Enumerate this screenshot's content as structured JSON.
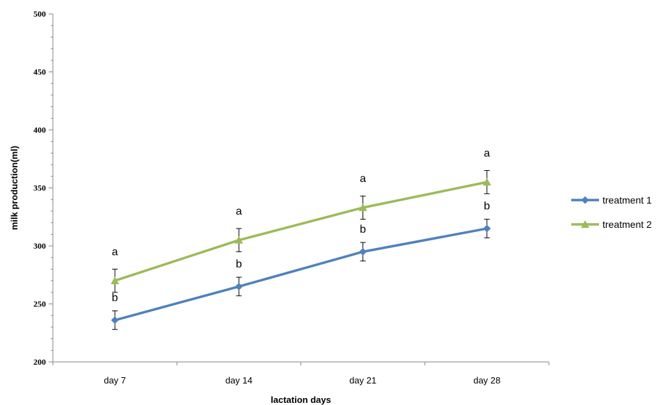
{
  "chart_data": {
    "type": "line",
    "categories": [
      "day 7",
      "day 14",
      "day 21",
      "day 28"
    ],
    "xlabel": "lactation days",
    "ylabel": "milk production(ml)",
    "ylim": [
      200,
      500
    ],
    "yticks": [
      200,
      250,
      300,
      350,
      400,
      450,
      500
    ],
    "grid": false,
    "legend_position": "right",
    "series": [
      {
        "name": "treatment 1",
        "color": "#4F81BD",
        "marker": "diamond",
        "values": [
          236,
          265,
          295,
          315
        ],
        "error": [
          8,
          8,
          8,
          8
        ],
        "annotations": [
          "b",
          "b",
          "b",
          "b"
        ]
      },
      {
        "name": "treatment 2",
        "color": "#9BBB59",
        "marker": "triangle",
        "values": [
          270,
          305,
          333,
          355
        ],
        "error": [
          10,
          10,
          10,
          10
        ],
        "annotations": [
          "a",
          "a",
          "a",
          "a"
        ]
      }
    ]
  }
}
